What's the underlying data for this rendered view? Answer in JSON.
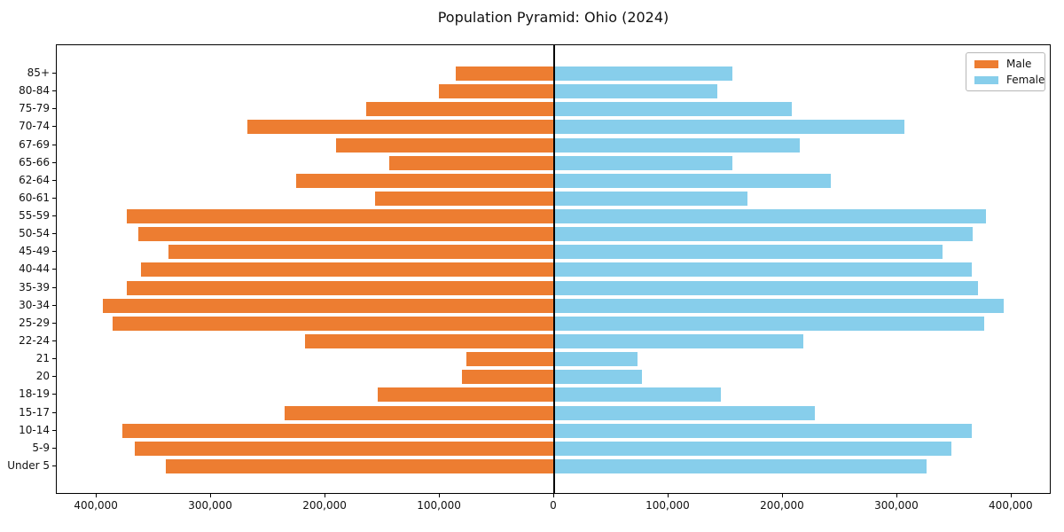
{
  "title": "Population Pyramid: Ohio (2024)",
  "chart_data": {
    "type": "bar",
    "subtype": "population-pyramid",
    "title": "Population Pyramid: Ohio (2024)",
    "xlabel": "",
    "ylabel": "",
    "grid": false,
    "legend_position": "upper right",
    "zero_line": true,
    "xlim": [
      -435000,
      435000
    ],
    "x_ticks": [
      -400000,
      -300000,
      -200000,
      -100000,
      0,
      100000,
      200000,
      300000,
      400000
    ],
    "x_tick_labels": [
      "400,000",
      "300,000",
      "200,000",
      "100,000",
      "0",
      "100,000",
      "200,000",
      "300,000",
      "400,000"
    ],
    "categories": [
      "85+",
      "80-84",
      "75-79",
      "70-74",
      "67-69",
      "65-66",
      "62-64",
      "60-61",
      "55-59",
      "50-54",
      "45-49",
      "40-44",
      "35-39",
      "30-34",
      "25-29",
      "22-24",
      "21",
      "20",
      "18-19",
      "15-17",
      "10-14",
      "5-9",
      "Under 5"
    ],
    "series": [
      {
        "name": "Male",
        "side": "left",
        "color": "#ed7d31",
        "values": [
          86000,
          101000,
          164000,
          268000,
          191000,
          144000,
          226000,
          157000,
          374000,
          364000,
          337000,
          361000,
          374000,
          395000,
          386000,
          218000,
          77000,
          81000,
          154000,
          236000,
          378000,
          367000,
          340000
        ]
      },
      {
        "name": "Female",
        "side": "right",
        "color": "#87ceeb",
        "values": [
          156000,
          143000,
          208000,
          306000,
          215000,
          156000,
          242000,
          169000,
          378000,
          366000,
          340000,
          365000,
          371000,
          393000,
          376000,
          218000,
          73000,
          77000,
          146000,
          228000,
          365000,
          347000,
          326000
        ]
      }
    ]
  }
}
